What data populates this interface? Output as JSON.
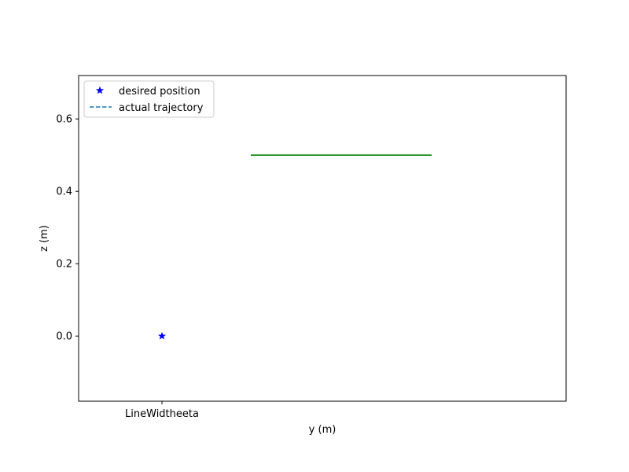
{
  "chart_data": {
    "type": "line",
    "title": "",
    "xlabel": "y (m)",
    "ylabel": "z (m)",
    "x_ticks": [
      "LineWidtheeta"
    ],
    "y_ticks": [
      "0.0",
      "0.2",
      "0.4",
      "0.6"
    ],
    "ylim": [
      -0.18,
      0.72
    ],
    "grid": false,
    "legend_position": "upper-left",
    "legend": [
      {
        "label": "desired position",
        "marker": "star",
        "color": "#0000ff"
      },
      {
        "label": "actual trajectory",
        "style": "dashed",
        "color": "#1f77b4"
      }
    ],
    "series": [
      {
        "name": "desired position",
        "type": "scatter",
        "marker": "star",
        "color": "#0000ff",
        "points": [
          {
            "x": "LineWidtheeta",
            "y": 0.0
          }
        ]
      },
      {
        "type": "line",
        "color": "#008000",
        "y": 0.5
      }
    ]
  }
}
